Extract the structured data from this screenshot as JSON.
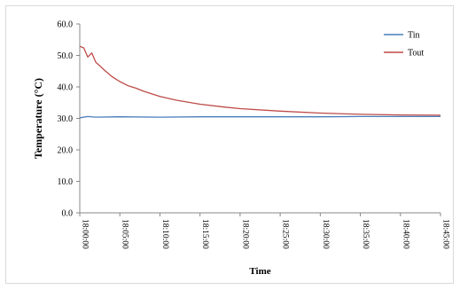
{
  "chart_data": {
    "type": "line",
    "xlabel": "Time",
    "ylabel": "Temperature (°C)",
    "ylim": [
      0,
      60
    ],
    "yticks": [
      "0.0",
      "10.0",
      "20.0",
      "30.0",
      "40.0",
      "50.0",
      "60.0"
    ],
    "xticks": [
      "18:00:00",
      "18:05:00",
      "18:10:00",
      "18:15:00",
      "18:20:00",
      "18:25:00",
      "18:30:00",
      "18:35:00",
      "18:40:00",
      "18:45:00"
    ],
    "xlim_minutes": [
      0,
      45
    ],
    "grid": false,
    "legend_position": "top-right",
    "series": [
      {
        "name": "Tin",
        "color": "#4a7ebb",
        "x": [
          "18:00:00",
          "18:01:00",
          "18:02:00",
          "18:05:00",
          "18:10:00",
          "18:15:00",
          "18:20:00",
          "18:25:00",
          "18:30:00",
          "18:35:00",
          "18:40:00",
          "18:45:00"
        ],
        "values": [
          30.2,
          30.6,
          30.4,
          30.5,
          30.4,
          30.5,
          30.5,
          30.5,
          30.5,
          30.6,
          30.6,
          30.6
        ]
      },
      {
        "name": "Tout",
        "color": "#be4b48",
        "x": [
          "18:00:00",
          "18:00:30",
          "18:01:00",
          "18:01:30",
          "18:02:00",
          "18:02:30",
          "18:03:00",
          "18:04:00",
          "18:05:00",
          "18:06:00",
          "18:07:00",
          "18:08:00",
          "18:10:00",
          "18:12:00",
          "18:15:00",
          "18:18:00",
          "18:20:00",
          "18:25:00",
          "18:30:00",
          "18:35:00",
          "18:40:00",
          "18:45:00"
        ],
        "values": [
          52.9,
          52.4,
          49.5,
          50.8,
          47.8,
          46.7,
          45.5,
          43.3,
          41.7,
          40.4,
          39.6,
          38.6,
          37.0,
          35.8,
          34.5,
          33.6,
          33.1,
          32.3,
          31.7,
          31.3,
          31.1,
          31.0
        ]
      }
    ]
  }
}
